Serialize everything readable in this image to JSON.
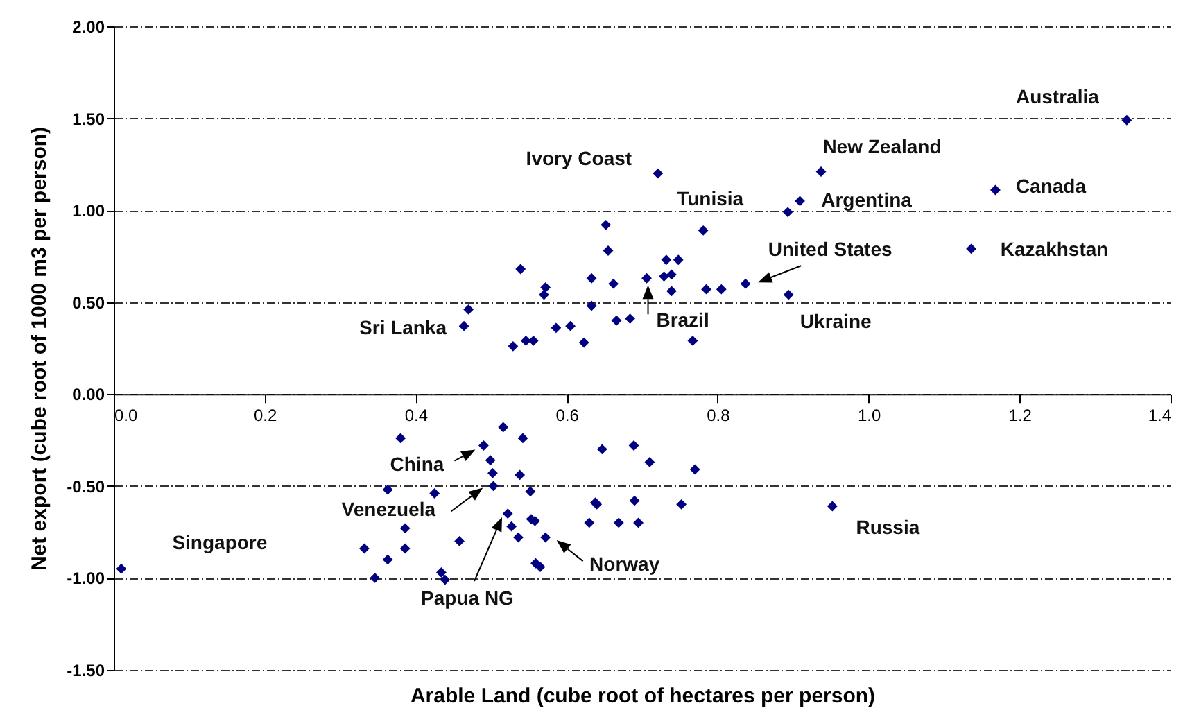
{
  "chart_data": {
    "type": "scatter",
    "xlabel": "Arable Land (cube root of hectares per person)",
    "ylabel": "Net export (cube root of 1000 m3 per person)",
    "xlim": [
      0,
      1.4
    ],
    "ylim": [
      -1.5,
      2
    ],
    "xticks": [
      {
        "value": 0,
        "label": "0.0"
      },
      0.2,
      0.4,
      0.6,
      0.8,
      {
        "value": 1,
        "label": "1.0"
      },
      1.2,
      1.4
    ],
    "yticks": [
      {
        "value": -1.5,
        "label": "-1.50"
      },
      {
        "value": -1,
        "label": "-1.00"
      },
      {
        "value": -0.5,
        "label": "-0.50"
      },
      {
        "value": 0,
        "label": "0.00"
      },
      {
        "value": 0.5,
        "label": "0.50"
      },
      {
        "value": 1,
        "label": "1.00"
      },
      {
        "value": 1.5,
        "label": "1.50"
      },
      {
        "value": 2,
        "label": "2.00"
      }
    ],
    "grid": "y",
    "marker": "diamond",
    "series": [
      {
        "color": "#000080",
        "x": [
          0.721,
          0.652,
          0.781,
          0.655,
          0.732,
          0.748,
          0.539,
          0.633,
          0.706,
          0.729,
          0.739,
          0.662,
          0.572,
          0.57,
          0.739,
          0.785,
          0.805,
          0.837,
          0.47,
          0.464,
          0.633,
          0.666,
          0.684,
          0.586,
          0.605,
          0.529,
          0.546,
          0.556,
          0.623,
          0.767,
          1.342,
          0.937,
          0.909,
          0.893,
          1.168,
          1.136,
          0.894,
          0.516,
          0.38,
          0.49,
          0.542,
          0.647,
          0.689,
          0.71,
          0.77,
          0.499,
          0.502,
          0.538,
          0.503,
          0.363,
          0.425,
          0.552,
          0.638,
          0.64,
          0.69,
          0.752,
          0.522,
          0.553,
          0.558,
          0.527,
          0.63,
          0.669,
          0.695,
          0.386,
          0.536,
          0.572,
          0.458,
          0.332,
          0.386,
          0.363,
          0.559,
          0.565,
          0.346,
          0.434,
          0.439,
          0.952,
          0.01
        ],
        "values": [
          1.2,
          0.92,
          0.89,
          0.78,
          0.73,
          0.73,
          0.68,
          0.63,
          0.63,
          0.64,
          0.65,
          0.6,
          0.58,
          0.54,
          0.56,
          0.57,
          0.57,
          0.6,
          0.46,
          0.37,
          0.48,
          0.4,
          0.41,
          0.36,
          0.37,
          0.26,
          0.29,
          0.29,
          0.28,
          0.29,
          1.49,
          1.21,
          1.05,
          0.99,
          1.11,
          0.79,
          0.54,
          -0.18,
          -0.24,
          -0.28,
          -0.24,
          -0.3,
          -0.28,
          -0.37,
          -0.41,
          -0.36,
          -0.43,
          -0.44,
          -0.5,
          -0.52,
          -0.54,
          -0.53,
          -0.59,
          -0.6,
          -0.58,
          -0.6,
          -0.65,
          -0.68,
          -0.69,
          -0.72,
          -0.7,
          -0.7,
          -0.7,
          -0.73,
          -0.78,
          -0.78,
          -0.8,
          -0.84,
          -0.84,
          -0.9,
          -0.92,
          -0.94,
          -1.0,
          -0.97,
          -1.01,
          -0.61,
          -0.95
        ]
      }
    ],
    "annotations": [
      {
        "text": "Australia",
        "x": 1.342,
        "y": 1.49
      },
      {
        "text": "New Zealand",
        "x": 0.937,
        "y": 1.21
      },
      {
        "text": "Argentina",
        "x": 0.909,
        "y": 1.05
      },
      {
        "text": "Ivory  Coast",
        "x": 0.721,
        "y": 1.2
      },
      {
        "text": "Canada",
        "x": 1.168,
        "y": 1.11
      },
      {
        "text": "Tunisia",
        "x": 0.781,
        "y": 0.89
      },
      {
        "text": "Kazakhstan",
        "x": 1.136,
        "y": 0.79
      },
      {
        "text": "United States",
        "x": 0.837,
        "y": 0.6
      },
      {
        "text": "Sri Lanka",
        "x": 0.464,
        "y": 0.37
      },
      {
        "text": "Brazil",
        "x": 0.706,
        "y": 0.63
      },
      {
        "text": "Ukraine",
        "x": 0.894,
        "y": 0.54
      },
      {
        "text": "China",
        "x": 0.49,
        "y": -0.28
      },
      {
        "text": "Venezuela",
        "x": 0.489,
        "y": -0.51
      },
      {
        "text": "Singapore",
        "x": 0.01,
        "y": -0.95
      },
      "Papua NG",
      {
        "text": "Norway",
        "x": 0.572,
        "y": -0.78
      },
      {
        "text": "Russia",
        "x": 0.952,
        "y": -0.61
      }
    ]
  }
}
